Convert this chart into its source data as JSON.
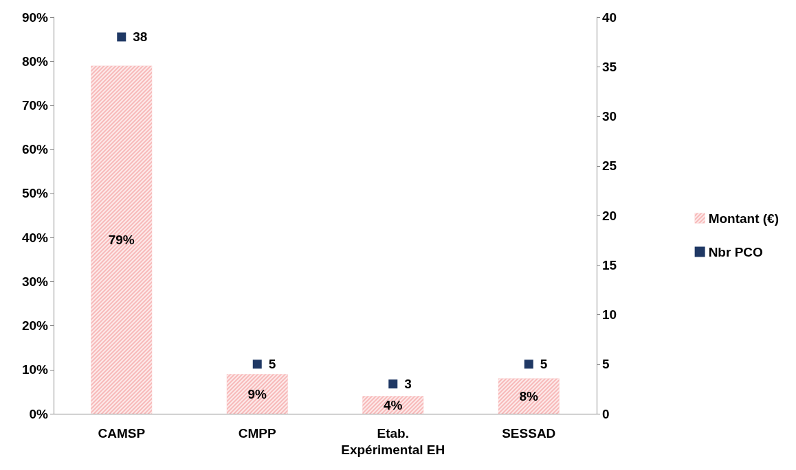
{
  "chart_data": {
    "type": "bar",
    "categories": [
      "CAMSP",
      "CMPP",
      "Etab.\nExpérimental EH",
      "SESSAD"
    ],
    "series": [
      {
        "name": "Montant (€)",
        "color": "#f7b9b9",
        "values": [
          79,
          9,
          4,
          8
        ],
        "value_labels": [
          "79%",
          "9%",
          "4%",
          "8%"
        ]
      },
      {
        "name": "Nbr PCO",
        "type": "scatter",
        "axis": "y2",
        "color": "#1f3864",
        "values": [
          38,
          5,
          3,
          5
        ]
      }
    ],
    "data_labels": true,
    "ylim": [
      0,
      90
    ],
    "yticks": [
      {
        "value": 0,
        "label": "0%"
      },
      {
        "value": 10,
        "label": "10%"
      },
      {
        "value": 20,
        "label": "20%"
      },
      {
        "value": 30,
        "label": "30%"
      },
      {
        "value": 40,
        "label": "40%"
      },
      {
        "value": 50,
        "label": "50%"
      },
      {
        "value": 60,
        "label": "60%"
      },
      {
        "value": 70,
        "label": "70%"
      },
      {
        "value": 80,
        "label": "80%"
      },
      {
        "value": 90,
        "label": "90%"
      }
    ],
    "y2lim": [
      0,
      40
    ],
    "y2ticks": [
      0,
      5,
      10,
      15,
      20,
      25,
      30,
      35,
      40
    ],
    "marker": "square",
    "grid": false,
    "legend": "right"
  }
}
